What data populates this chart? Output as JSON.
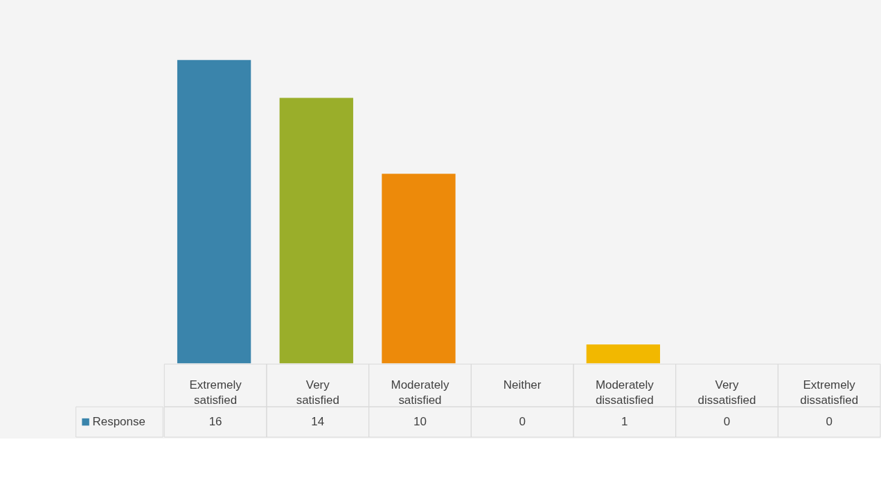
{
  "chart_data": {
    "type": "bar",
    "categories": [
      "Extremely satisfied",
      "Very satisfied",
      "Moderately satisfied",
      "Neither",
      "Moderately dissatisfied",
      "Very dissatisfied",
      "Extremely dissatisfied"
    ],
    "series": [
      {
        "name": "Response",
        "color": "#3a84ab",
        "colors": [
          "#3a84ab",
          "#9aae2a",
          "#ed8a0a",
          "#f2b800",
          "#f2b800",
          "#9aae2a",
          "#ed8a0a"
        ],
        "values": [
          16,
          14,
          10,
          0,
          1,
          0,
          0
        ]
      }
    ],
    "data_labels": true,
    "legend": "bottom",
    "grid": false
  }
}
